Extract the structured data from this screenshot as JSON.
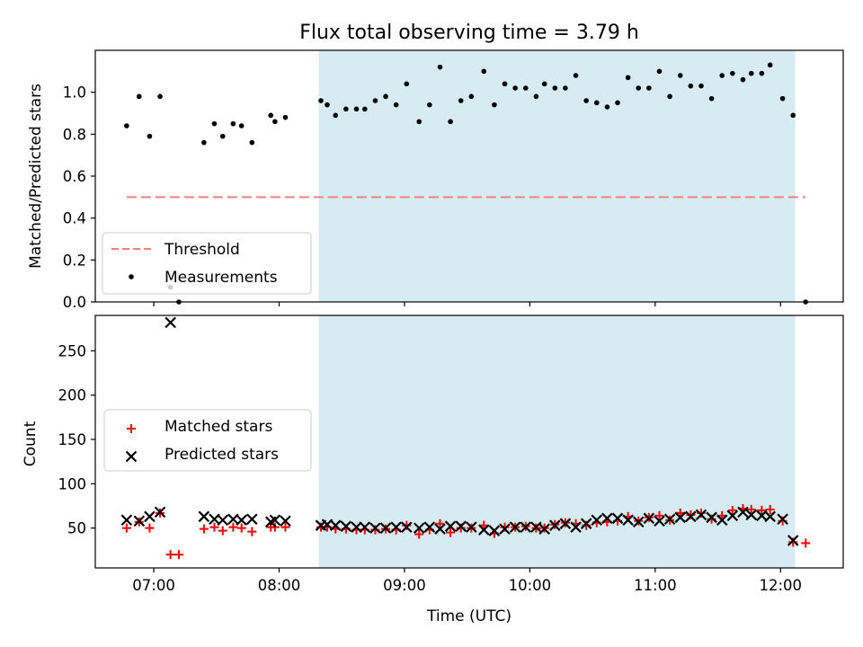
{
  "figure": {
    "title": "Flux total observing time = 3.79 h",
    "xlabel": "Time (UTC)"
  },
  "colors": {
    "shade": "#add8e6",
    "threshold": "#f08080",
    "measurement": "#000000",
    "matched": "#ff0000",
    "predicted": "#000000"
  },
  "chart_data": [
    {
      "type": "scatter",
      "panel": "top",
      "ylabel": "Matched/Predicted stars",
      "xlim": [
        "06:32",
        "12:30"
      ],
      "ylim": [
        0,
        1.2
      ],
      "yticks": [
        "0.0",
        "0.2",
        "0.4",
        "0.6",
        "0.8",
        "1.0"
      ],
      "xticks": [
        "07:00",
        "08:00",
        "09:00",
        "10:00",
        "11:00",
        "12:00"
      ],
      "shaded_interval": [
        "08:19",
        "12:07"
      ],
      "legend_position": "lower-left",
      "threshold": {
        "name": "Threshold",
        "y": 0.5,
        "x_range": [
          "06:47",
          "12:12"
        ]
      },
      "series": [
        {
          "name": "Measurements",
          "points": [
            [
              "06:47",
              0.84
            ],
            [
              "06:53",
              0.98
            ],
            [
              "06:58",
              0.79
            ],
            [
              "07:03",
              0.98
            ],
            [
              "07:08",
              0.07
            ],
            [
              "07:12",
              0.0
            ],
            [
              "07:24",
              0.76
            ],
            [
              "07:29",
              0.85
            ],
            [
              "07:33",
              0.79
            ],
            [
              "07:38",
              0.85
            ],
            [
              "07:42",
              0.84
            ],
            [
              "07:47",
              0.76
            ],
            [
              "07:56",
              0.89
            ],
            [
              "07:58",
              0.86
            ],
            [
              "08:03",
              0.88
            ],
            [
              "08:20",
              0.96
            ],
            [
              "08:23",
              0.94
            ],
            [
              "08:27",
              0.89
            ],
            [
              "08:32",
              0.92
            ],
            [
              "08:37",
              0.92
            ],
            [
              "08:41",
              0.92
            ],
            [
              "08:46",
              0.96
            ],
            [
              "08:51",
              0.98
            ],
            [
              "08:56",
              0.94
            ],
            [
              "09:01",
              1.04
            ],
            [
              "09:07",
              0.86
            ],
            [
              "09:12",
              0.94
            ],
            [
              "09:17",
              1.12
            ],
            [
              "09:22",
              0.86
            ],
            [
              "09:27",
              0.96
            ],
            [
              "09:32",
              0.98
            ],
            [
              "09:38",
              1.1
            ],
            [
              "09:43",
              0.94
            ],
            [
              "09:48",
              1.04
            ],
            [
              "09:53",
              1.02
            ],
            [
              "09:58",
              1.02
            ],
            [
              "10:03",
              0.98
            ],
            [
              "10:07",
              1.04
            ],
            [
              "10:12",
              1.02
            ],
            [
              "10:17",
              1.02
            ],
            [
              "10:22",
              1.08
            ],
            [
              "10:27",
              0.96
            ],
            [
              "10:32",
              0.95
            ],
            [
              "10:37",
              0.93
            ],
            [
              "10:42",
              0.95
            ],
            [
              "10:47",
              1.07
            ],
            [
              "10:52",
              1.02
            ],
            [
              "10:57",
              1.02
            ],
            [
              "11:02",
              1.1
            ],
            [
              "11:07",
              0.98
            ],
            [
              "11:12",
              1.08
            ],
            [
              "11:17",
              1.03
            ],
            [
              "11:22",
              1.03
            ],
            [
              "11:27",
              0.97
            ],
            [
              "11:32",
              1.08
            ],
            [
              "11:37",
              1.09
            ],
            [
              "11:42",
              1.06
            ],
            [
              "11:46",
              1.09
            ],
            [
              "11:51",
              1.09
            ],
            [
              "11:55",
              1.13
            ],
            [
              "12:01",
              0.97
            ],
            [
              "12:06",
              0.89
            ],
            [
              "12:12",
              0.0
            ]
          ]
        }
      ]
    },
    {
      "type": "scatter",
      "panel": "bottom",
      "ylabel": "Count",
      "xlim": [
        "06:32",
        "12:30"
      ],
      "ylim": [
        5,
        290
      ],
      "yticks": [
        "50",
        "100",
        "150",
        "200",
        "250"
      ],
      "xticks": [
        "07:00",
        "08:00",
        "09:00",
        "10:00",
        "11:00",
        "12:00"
      ],
      "shaded_interval": [
        "08:19",
        "12:07"
      ],
      "legend_position": "center-left",
      "series": [
        {
          "name": "Matched stars",
          "marker": "+",
          "points": [
            [
              "06:47",
              50
            ],
            [
              "06:53",
              57
            ],
            [
              "06:58",
              50
            ],
            [
              "07:03",
              67
            ],
            [
              "07:08",
              20
            ],
            [
              "07:12",
              20
            ],
            [
              "07:24",
              49
            ],
            [
              "07:29",
              51
            ],
            [
              "07:33",
              47
            ],
            [
              "07:38",
              51
            ],
            [
              "07:42",
              50
            ],
            [
              "07:47",
              46
            ],
            [
              "07:56",
              51
            ],
            [
              "07:58",
              51
            ],
            [
              "08:03",
              51
            ],
            [
              "08:20",
              51
            ],
            [
              "08:23",
              51
            ],
            [
              "08:27",
              49
            ],
            [
              "08:32",
              49
            ],
            [
              "08:37",
              48
            ],
            [
              "08:41",
              48
            ],
            [
              "08:46",
              48
            ],
            [
              "08:51",
              49
            ],
            [
              "08:56",
              48
            ],
            [
              "09:01",
              53
            ],
            [
              "09:07",
              43
            ],
            [
              "09:12",
              48
            ],
            [
              "09:17",
              55
            ],
            [
              "09:22",
              45
            ],
            [
              "09:27",
              50
            ],
            [
              "09:32",
              50
            ],
            [
              "09:38",
              53
            ],
            [
              "09:43",
              44
            ],
            [
              "09:48",
              51
            ],
            [
              "09:53",
              51
            ],
            [
              "09:58",
              52
            ],
            [
              "10:03",
              50
            ],
            [
              "10:07",
              50
            ],
            [
              "10:12",
              54
            ],
            [
              "10:17",
              56
            ],
            [
              "10:22",
              55
            ],
            [
              "10:27",
              53
            ],
            [
              "10:32",
              56
            ],
            [
              "10:37",
              57
            ],
            [
              "10:42",
              58
            ],
            [
              "10:47",
              63
            ],
            [
              "10:52",
              58
            ],
            [
              "10:57",
              62
            ],
            [
              "11:02",
              64
            ],
            [
              "11:07",
              59
            ],
            [
              "11:12",
              67
            ],
            [
              "11:17",
              65
            ],
            [
              "11:22",
              67
            ],
            [
              "11:27",
              60
            ],
            [
              "11:32",
              64
            ],
            [
              "11:37",
              70
            ],
            [
              "11:42",
              72
            ],
            [
              "11:46",
              71
            ],
            [
              "11:51",
              70
            ],
            [
              "11:55",
              71
            ],
            [
              "12:01",
              58
            ],
            [
              "12:06",
              34
            ],
            [
              "12:12",
              33
            ]
          ]
        },
        {
          "name": "Predicted stars",
          "marker": "x",
          "points": [
            [
              "06:47",
              59
            ],
            [
              "06:53",
              58
            ],
            [
              "06:58",
              63
            ],
            [
              "07:03",
              68
            ],
            [
              "07:08",
              282
            ],
            [
              "07:24",
              63
            ],
            [
              "07:29",
              60
            ],
            [
              "07:33",
              59
            ],
            [
              "07:38",
              60
            ],
            [
              "07:42",
              59
            ],
            [
              "07:47",
              60
            ],
            [
              "07:56",
              57
            ],
            [
              "07:58",
              59
            ],
            [
              "08:03",
              58
            ],
            [
              "08:20",
              53
            ],
            [
              "08:23",
              54
            ],
            [
              "08:27",
              53
            ],
            [
              "08:32",
              52
            ],
            [
              "08:37",
              51
            ],
            [
              "08:41",
              51
            ],
            [
              "08:46",
              50
            ],
            [
              "08:51",
              50
            ],
            [
              "08:56",
              51
            ],
            [
              "09:01",
              51
            ],
            [
              "09:07",
              50
            ],
            [
              "09:12",
              51
            ],
            [
              "09:17",
              49
            ],
            [
              "09:22",
              52
            ],
            [
              "09:27",
              52
            ],
            [
              "09:32",
              51
            ],
            [
              "09:38",
              48
            ],
            [
              "09:43",
              47
            ],
            [
              "09:48",
              49
            ],
            [
              "09:53",
              51
            ],
            [
              "09:58",
              51
            ],
            [
              "10:03",
              51
            ],
            [
              "10:07",
              49
            ],
            [
              "10:12",
              53
            ],
            [
              "10:17",
              55
            ],
            [
              "10:22",
              51
            ],
            [
              "10:27",
              55
            ],
            [
              "10:32",
              59
            ],
            [
              "10:37",
              61
            ],
            [
              "10:42",
              61
            ],
            [
              "10:47",
              59
            ],
            [
              "10:52",
              57
            ],
            [
              "10:57",
              61
            ],
            [
              "11:02",
              58
            ],
            [
              "11:07",
              60
            ],
            [
              "11:12",
              62
            ],
            [
              "11:17",
              63
            ],
            [
              "11:22",
              65
            ],
            [
              "11:27",
              62
            ],
            [
              "11:32",
              59
            ],
            [
              "11:37",
              64
            ],
            [
              "11:42",
              68
            ],
            [
              "11:46",
              65
            ],
            [
              "11:51",
              64
            ],
            [
              "11:55",
              63
            ],
            [
              "12:01",
              60
            ],
            [
              "12:06",
              36
            ]
          ]
        }
      ]
    }
  ]
}
